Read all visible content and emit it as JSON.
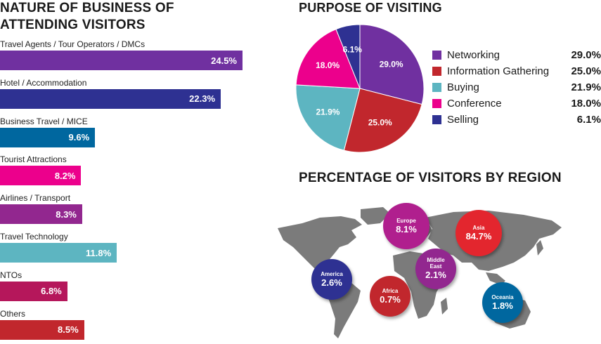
{
  "business": {
    "title_line1": "NATURE OF BUSINESS OF",
    "title_line2": "ATTENDING VISITORS"
  },
  "purpose": {
    "title": "PURPOSE OF VISITING"
  },
  "region": {
    "title": "PERCENTAGE OF VISITORS BY REGION"
  },
  "chart_data": [
    {
      "type": "bar",
      "orientation": "horizontal",
      "title": "NATURE OF BUSINESS OF ATTENDING VISITORS",
      "categories": [
        "Travel Agents / Tour Operators / DMCs",
        "Hotel / Accommodation",
        "Business Travel / MICE",
        "Tourist Attractions",
        "Airlines / Transport",
        "Travel Technology",
        "NTOs",
        "Others"
      ],
      "values": [
        24.5,
        22.3,
        9.6,
        8.2,
        8.3,
        11.8,
        6.8,
        8.5
      ],
      "value_labels": [
        "24.5%",
        "22.3%",
        "9.6%",
        "8.2%",
        "8.3%",
        "11.8%",
        "6.8%",
        "8.5%"
      ],
      "colors": [
        "#7030a0",
        "#2e3192",
        "#00679f",
        "#ec008c",
        "#92278f",
        "#5db5c1",
        "#b5175b",
        "#c1272d"
      ]
    },
    {
      "type": "pie",
      "title": "PURPOSE OF VISITING",
      "categories": [
        "Networking",
        "Information Gathering",
        "Buying",
        "Conference",
        "Selling"
      ],
      "values": [
        29.0,
        25.0,
        21.9,
        18.0,
        6.1
      ],
      "value_labels": [
        "29.0%",
        "25.0%",
        "21.9%",
        "18.0%",
        "6.1%"
      ],
      "colors": [
        "#7030a0",
        "#c1272d",
        "#5db5c1",
        "#ec008c",
        "#2e3192"
      ],
      "legend": "right"
    },
    {
      "type": "bubble",
      "title": "PERCENTAGE OF VISITORS BY REGION",
      "categories": [
        "Europe",
        "Asia",
        "Middle East",
        "America",
        "Africa",
        "Oceania"
      ],
      "name_labels": [
        "Europe",
        "Asia",
        "Middle\nEast",
        "America",
        "Africa",
        "Oceania"
      ],
      "values": [
        8.1,
        84.7,
        2.1,
        2.6,
        0.7,
        1.8
      ],
      "value_labels": [
        "8.1%",
        "84.7%",
        "2.1%",
        "2.6%",
        "0.7%",
        "1.8%"
      ],
      "colors": [
        "#b01f8e",
        "#e3262e",
        "#92278f",
        "#2e3192",
        "#c1272d",
        "#00679f"
      ]
    }
  ]
}
